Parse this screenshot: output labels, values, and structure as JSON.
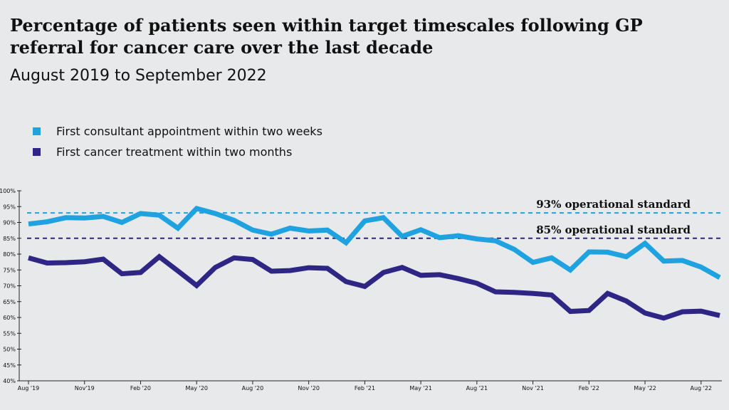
{
  "title": "Percentage of patients seen within target timescales following GP referral for cancer care over the last decade",
  "subtitle": "August 2019 to September 2022",
  "chart_data": {
    "type": "line",
    "ylim": [
      40,
      100
    ],
    "y_ticks": [
      "100%",
      "95%",
      "90%",
      "85%",
      "80%",
      "75%",
      "70%",
      "65%",
      "60%",
      "55%",
      "50%",
      "45%",
      "40%"
    ],
    "x_tick_labels": [
      "Aug '19",
      "Nov'19",
      "Feb '20",
      "May '20",
      "Aug '20",
      "Nov '20",
      "Feb '21",
      "May '21",
      "Aug '21",
      "Nov '21",
      "Feb '22",
      "May '22",
      "Aug '22"
    ],
    "x_tick_index": [
      0,
      3,
      6,
      9,
      12,
      15,
      18,
      21,
      24,
      27,
      30,
      33,
      36
    ],
    "grid": false,
    "legend_position": "top-left",
    "series": [
      {
        "name": "First consultant appointment within two weeks",
        "color": "#1ea3e0",
        "values": [
          89.5,
          90.2,
          91.5,
          91.4,
          91.9,
          90.0,
          92.8,
          92.3,
          88.2,
          94.4,
          92.8,
          90.7,
          87.6,
          86.3,
          88.2,
          87.3,
          87.6,
          83.6,
          90.5,
          91.5,
          85.6,
          87.7,
          85.2,
          85.8,
          84.8,
          84.2,
          81.5,
          77.4,
          78.8,
          75.0,
          80.7,
          80.6,
          79.2,
          83.4,
          77.8,
          78.0,
          75.9,
          72.6
        ]
      },
      {
        "name": "First cancer treatment within two months",
        "color": "#2e2684",
        "values": [
          78.8,
          77.2,
          77.3,
          77.6,
          78.4,
          73.8,
          74.2,
          79.2,
          74.7,
          70.1,
          75.8,
          78.8,
          78.3,
          74.6,
          74.8,
          75.7,
          75.5,
          71.3,
          69.8,
          74.2,
          75.8,
          73.3,
          73.5,
          72.3,
          70.8,
          68.1,
          67.9,
          67.6,
          67.1,
          61.9,
          62.2,
          67.6,
          65.2,
          61.4,
          59.8,
          61.8,
          62.0,
          60.6
        ]
      }
    ],
    "reference_lines": [
      {
        "value": 93,
        "label": "93% operational standard",
        "color": "#1ea3e0"
      },
      {
        "value": 85,
        "label": "85% operational standard",
        "color": "#2e2684"
      }
    ]
  }
}
